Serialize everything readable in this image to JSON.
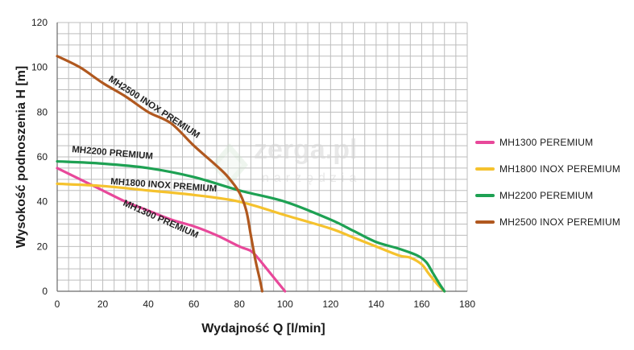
{
  "chart_data": {
    "type": "line",
    "xlabel": "Wydajność Q [l/min]",
    "ylabel": "Wysokość podnoszenia H [m]",
    "xlim": [
      0,
      180
    ],
    "ylim": [
      0,
      120
    ],
    "x_ticks": [
      0,
      20,
      40,
      60,
      80,
      100,
      120,
      140,
      160,
      180
    ],
    "y_ticks": [
      0,
      20,
      40,
      60,
      80,
      100,
      120
    ],
    "grid": true,
    "legend_position": "right",
    "series": [
      {
        "name": "MH1300 PEREMIUM",
        "color": "#e8489a",
        "curve_label": "MH1300 PREMIUM",
        "points": [
          [
            0,
            55
          ],
          [
            10,
            50
          ],
          [
            20,
            45
          ],
          [
            30,
            40
          ],
          [
            40,
            36
          ],
          [
            50,
            32
          ],
          [
            60,
            29
          ],
          [
            70,
            25
          ],
          [
            80,
            20
          ],
          [
            85,
            18
          ],
          [
            88,
            15
          ],
          [
            92,
            10
          ],
          [
            96,
            5
          ],
          [
            100,
            0
          ]
        ]
      },
      {
        "name": "MH1800 INOX PEREMIUM",
        "color": "#f5c22e",
        "curve_label": "MH1800 INOX PREMIUM",
        "points": [
          [
            0,
            48
          ],
          [
            20,
            47
          ],
          [
            40,
            45
          ],
          [
            60,
            43
          ],
          [
            80,
            40
          ],
          [
            100,
            34
          ],
          [
            120,
            28
          ],
          [
            130,
            24
          ],
          [
            140,
            20
          ],
          [
            150,
            16
          ],
          [
            155,
            15
          ],
          [
            160,
            12
          ],
          [
            163,
            8
          ],
          [
            167,
            3
          ],
          [
            170,
            0
          ]
        ]
      },
      {
        "name": "MH2200 PEREMIUM",
        "color": "#1ea153",
        "curve_label": "MH2200 PREMIUM",
        "points": [
          [
            0,
            58
          ],
          [
            20,
            57
          ],
          [
            40,
            55
          ],
          [
            60,
            51
          ],
          [
            80,
            45
          ],
          [
            100,
            40
          ],
          [
            120,
            32
          ],
          [
            130,
            27
          ],
          [
            140,
            22
          ],
          [
            150,
            19
          ],
          [
            158,
            16
          ],
          [
            162,
            13
          ],
          [
            165,
            8
          ],
          [
            168,
            3
          ],
          [
            170,
            0
          ]
        ]
      },
      {
        "name": "MH2500 INOX PEREMIUM",
        "color": "#b0581f",
        "curve_label": "MH2500 INOX PREMIUM",
        "points": [
          [
            0,
            105
          ],
          [
            10,
            100
          ],
          [
            20,
            93
          ],
          [
            30,
            87
          ],
          [
            40,
            80
          ],
          [
            50,
            75
          ],
          [
            60,
            65
          ],
          [
            70,
            56
          ],
          [
            75,
            51
          ],
          [
            80,
            44
          ],
          [
            83,
            36
          ],
          [
            85,
            25
          ],
          [
            87,
            14
          ],
          [
            89,
            5
          ],
          [
            90,
            0
          ]
        ]
      }
    ]
  },
  "watermark": {
    "brand": "zerga.pl",
    "sub": "narzędzia"
  }
}
